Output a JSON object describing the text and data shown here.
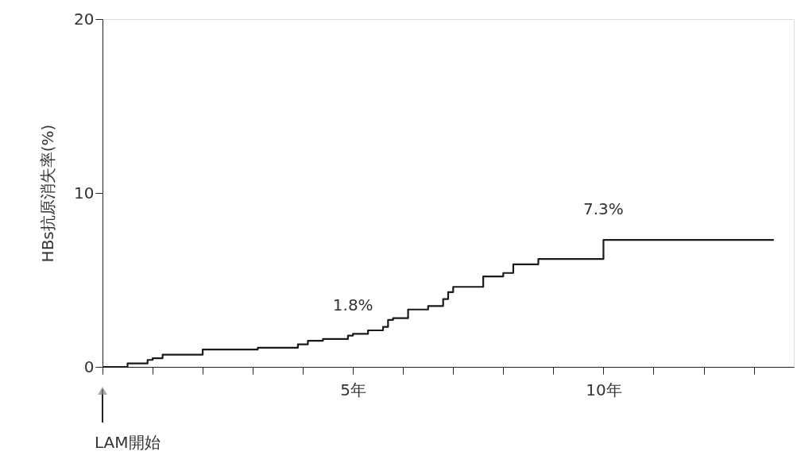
{
  "chart_data": {
    "type": "step",
    "ylabel": "HBs抗原消失率(%)",
    "x": [
      0,
      0.5,
      0.9,
      1.0,
      1.2,
      2.0,
      3.1,
      3.9,
      4.1,
      4.4,
      4.9,
      5.0,
      5.3,
      5.6,
      5.7,
      5.8,
      6.1,
      6.5,
      6.8,
      6.9,
      7.0,
      7.6,
      8.0,
      8.2,
      8.7,
      10.0,
      13.4
    ],
    "series": [
      {
        "color": "#1a1a1a",
        "values": [
          0,
          0.2,
          0.4,
          0.5,
          0.7,
          1.0,
          1.1,
          1.3,
          1.5,
          1.6,
          1.8,
          1.9,
          2.1,
          2.3,
          2.7,
          2.8,
          3.3,
          3.5,
          3.9,
          4.3,
          4.6,
          5.2,
          5.4,
          5.9,
          6.2,
          7.3,
          7.3
        ]
      }
    ],
    "xlim": [
      0,
      13.8
    ],
    "xticks": [
      {
        "value": 0,
        "label": null
      },
      {
        "value": 1,
        "label": null
      },
      {
        "value": 2,
        "label": null
      },
      {
        "value": 3,
        "label": null
      },
      {
        "value": 4,
        "label": null
      },
      {
        "value": 5,
        "label": "5年"
      },
      {
        "value": 6,
        "label": null
      },
      {
        "value": 7,
        "label": null
      },
      {
        "value": 8,
        "label": null
      },
      {
        "value": 9,
        "label": null
      },
      {
        "value": 10,
        "label": "10年"
      },
      {
        "value": 11,
        "label": null
      },
      {
        "value": 12,
        "label": null
      },
      {
        "value": 13,
        "label": null
      }
    ],
    "ylim": [
      0,
      20
    ],
    "yticks": [
      0,
      10,
      20
    ],
    "grid": false,
    "line_style": "solid",
    "marker": "none",
    "annotations": [
      {
        "text": "1.8%",
        "x": 5,
        "y": 1.8
      },
      {
        "text": "7.3%",
        "x": 10,
        "y": 7.3
      },
      "LAM開始"
    ]
  }
}
